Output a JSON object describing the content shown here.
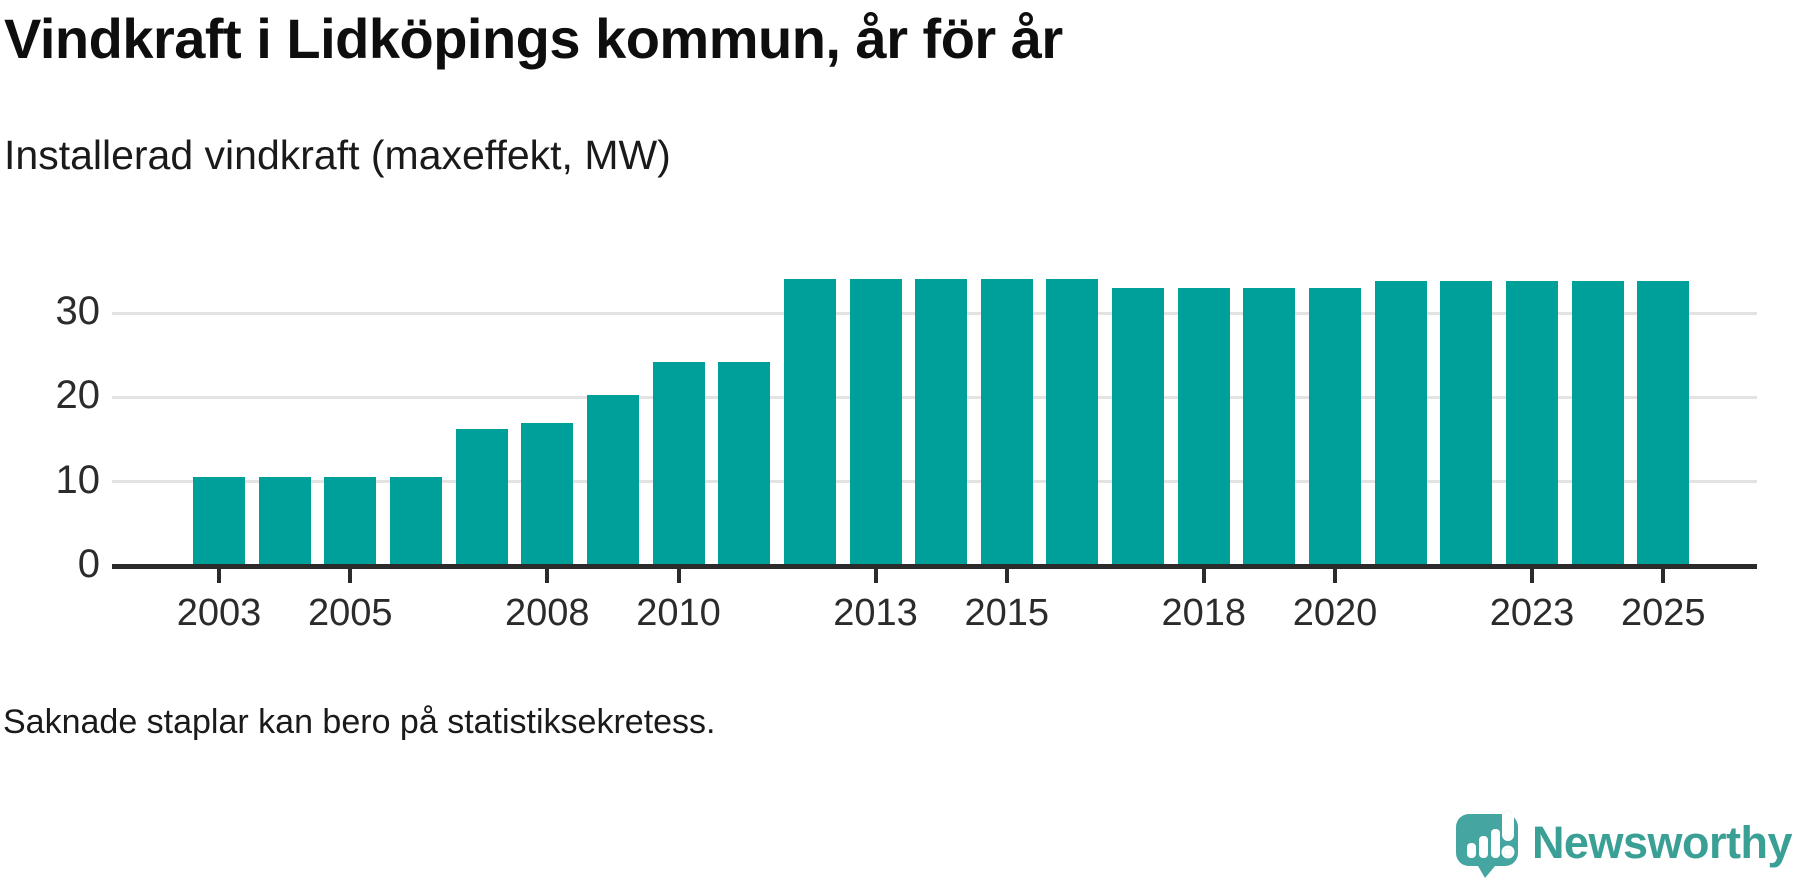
{
  "title": "Vindkraft i Lidköpings kommun, år för år",
  "subtitle": "Installerad vindkraft (maxeffekt, MW)",
  "footnote": "Saknade staplar kan bero på statistiksekretess.",
  "brand": {
    "name": "Newsworthy",
    "logo_icon": "speech-bubble-bar-chart-exclamation-icon",
    "logo_color": "#45a5a0",
    "wordmark_color": "#3aa096"
  },
  "colors": {
    "bar": "#00a09a",
    "gridline": "#e3e3e3",
    "axis": "#2b2b2b",
    "text": "#1a1a1a"
  },
  "chart_data": {
    "type": "bar",
    "title": "Vindkraft i Lidköpings kommun, år för år",
    "subtitle": "Installerad vindkraft (maxeffekt, MW)",
    "xlabel": "",
    "ylabel": "Installerad vindkraft (maxeffekt, MW)",
    "unit": "MW",
    "categories": [
      2003,
      2004,
      2005,
      2006,
      2007,
      2008,
      2009,
      2010,
      2011,
      2012,
      2013,
      2014,
      2015,
      2016,
      2017,
      2018,
      2019,
      2020,
      2021,
      2022,
      2023,
      2024,
      2025
    ],
    "values": [
      10.6,
      10.6,
      10.6,
      10.6,
      16.3,
      17.0,
      20.3,
      24.2,
      24.2,
      34.0,
      34.0,
      34.0,
      34.0,
      34.0,
      33.0,
      33.0,
      33.0,
      33.0,
      33.8,
      33.8,
      33.8,
      33.8,
      33.8
    ],
    "ylim": [
      0,
      35.5
    ],
    "yticks": [
      0,
      10,
      20,
      30
    ],
    "xtick_labels": [
      "2003",
      "2005",
      "2008",
      "2010",
      "2013",
      "2015",
      "2018",
      "2020",
      "2023",
      "2025"
    ],
    "grid": "horizontal",
    "legend": "none"
  }
}
